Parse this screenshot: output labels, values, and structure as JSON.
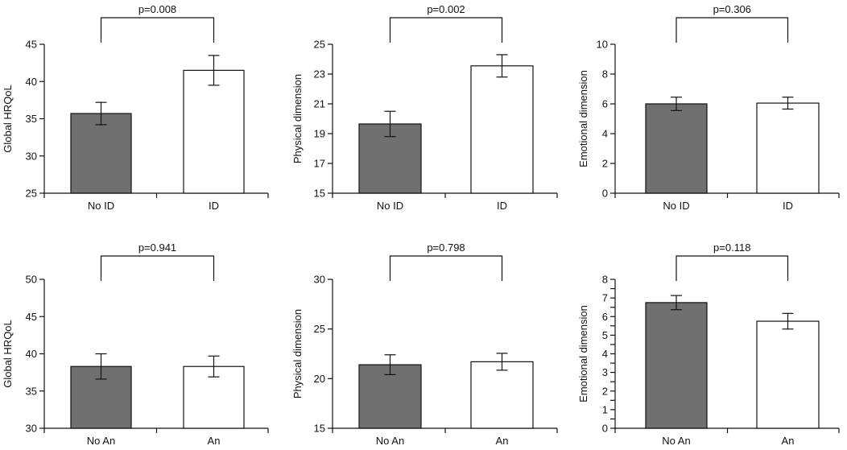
{
  "colors": {
    "bar_dark": "#707070",
    "bar_light": "#ffffff",
    "stroke": "#111111"
  },
  "chart_data": [
    {
      "type": "bar",
      "ylabel": "Global HRQoL",
      "categories": [
        "No ID",
        "ID"
      ],
      "values": [
        35.7,
        41.5
      ],
      "errors": [
        1.5,
        2.0
      ],
      "ylim": [
        25,
        45
      ],
      "yticks": [
        25,
        30,
        35,
        40,
        45
      ],
      "pvalue": "p=0.008",
      "grid": false
    },
    {
      "type": "bar",
      "ylabel": "Physical dimension",
      "categories": [
        "No ID",
        "ID"
      ],
      "values": [
        19.65,
        23.55
      ],
      "errors": [
        0.85,
        0.75
      ],
      "ylim": [
        15,
        25
      ],
      "yticks": [
        15,
        17,
        19,
        21,
        23,
        25
      ],
      "pvalue": "p=0.002",
      "grid": false
    },
    {
      "type": "bar",
      "ylabel": "Emotional dimension",
      "categories": [
        "No ID",
        "ID"
      ],
      "values": [
        6.0,
        6.05
      ],
      "errors": [
        0.45,
        0.4
      ],
      "ylim": [
        0,
        10
      ],
      "yticks": [
        0,
        2,
        4,
        6,
        8,
        10
      ],
      "pvalue": "p=0.306",
      "grid": false
    },
    {
      "type": "bar",
      "ylabel": "Global HRQoL",
      "categories": [
        "No An",
        "An"
      ],
      "values": [
        38.3,
        38.3
      ],
      "errors": [
        1.7,
        1.4
      ],
      "ylim": [
        30,
        50
      ],
      "yticks": [
        30,
        35,
        40,
        45,
        50
      ],
      "pvalue": "p=0.941",
      "grid": false
    },
    {
      "type": "bar",
      "ylabel": "Physical dimension",
      "categories": [
        "No An",
        "An"
      ],
      "values": [
        21.4,
        21.7
      ],
      "errors": [
        1.0,
        0.85
      ],
      "ylim": [
        15,
        30
      ],
      "yticks": [
        15,
        20,
        25,
        30
      ],
      "pvalue": "p=0.798",
      "grid": false
    },
    {
      "type": "bar",
      "ylabel": "Emotional dimension",
      "categories": [
        "No An",
        "An"
      ],
      "values": [
        6.75,
        5.75
      ],
      "errors": [
        0.38,
        0.42
      ],
      "ylim": [
        0,
        8
      ],
      "yticks": [
        0,
        0.5,
        1,
        1.5,
        2,
        2.5,
        3,
        3.5,
        4,
        4.5,
        5,
        5.5,
        6,
        6.5,
        7,
        7.5,
        8
      ],
      "ytick_labels": [
        "0",
        "",
        "1",
        "",
        "2",
        "",
        "3",
        "",
        "4",
        "",
        "5",
        "",
        "6",
        "",
        "7",
        "",
        "8"
      ],
      "pvalue": "p=0.118",
      "grid": false
    }
  ]
}
